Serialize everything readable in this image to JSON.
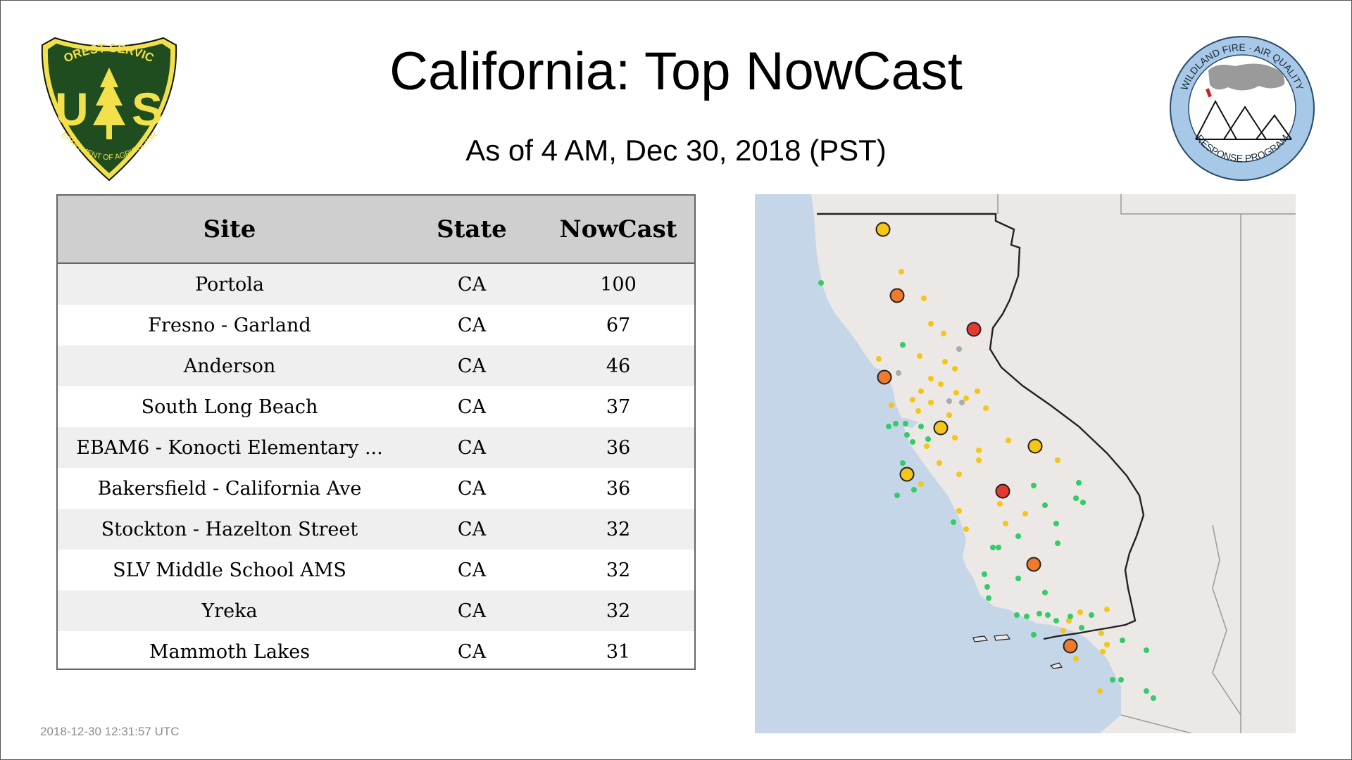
{
  "page": {
    "title": "California: Top NowCast",
    "subtitle": "As of  4 AM, Dec 30, 2018 (PST)",
    "timestamp": "2018-12-30 12:31:57 UTC"
  },
  "logos": {
    "usfs": {
      "top_text": "FOREST SERVICE",
      "letters": "US",
      "bottom_text": "DEPARTMENT OF AGRICULTURE",
      "colors": {
        "shield": "#1f4d1f",
        "gold": "#f2e14a"
      }
    },
    "wfaq": {
      "ring_top": "WILDLAND FIRE · AIR QUALITY",
      "ring_bottom": "RESPONSE PROGRAM",
      "colors": {
        "ring": "#a8c8e8"
      }
    }
  },
  "table": {
    "headers": {
      "site": "Site",
      "state": "State",
      "nowcast": "NowCast"
    },
    "rows": [
      {
        "site": "Portola",
        "state": "CA",
        "nowcast": "100"
      },
      {
        "site": "Fresno - Garland",
        "state": "CA",
        "nowcast": "67"
      },
      {
        "site": "Anderson",
        "state": "CA",
        "nowcast": "46"
      },
      {
        "site": "South Long Beach",
        "state": "CA",
        "nowcast": "37"
      },
      {
        "site": "EBAM6 - Konocti Elementary ...",
        "state": "CA",
        "nowcast": "36"
      },
      {
        "site": "Bakersfield - California Ave",
        "state": "CA",
        "nowcast": "36"
      },
      {
        "site": "Stockton - Hazelton Street",
        "state": "CA",
        "nowcast": "32"
      },
      {
        "site": "SLV Middle School AMS",
        "state": "CA",
        "nowcast": "32"
      },
      {
        "site": "Yreka",
        "state": "CA",
        "nowcast": "32"
      },
      {
        "site": "Mammoth Lakes",
        "state": "CA",
        "nowcast": "31"
      }
    ]
  },
  "map": {
    "colors": {
      "ocean": "#c5d6e8",
      "land": "#ebe8e5",
      "border": "#222222",
      "good": "#33cc66",
      "moderate": "#f5c518",
      "usg": "#f07a2a",
      "unhealthy": "#e53a32",
      "missing": "#aaaaaa"
    }
  }
}
